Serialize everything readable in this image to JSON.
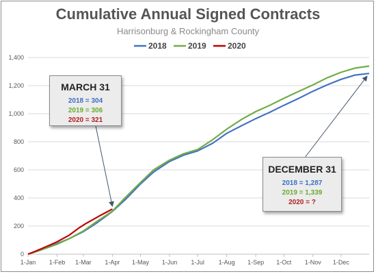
{
  "chart_data": {
    "type": "line",
    "title": "Cumulative Annual Signed Contracts",
    "subtitle": "Harrisonburg & Rockingham County",
    "xlabel": "",
    "ylabel": "",
    "ylim": [
      0,
      1400
    ],
    "y_ticks": [
      "0",
      "200",
      "400",
      "600",
      "800",
      "1,000",
      "1,200",
      "1,400"
    ],
    "x_ticks": [
      "1-Jan",
      "1-Feb",
      "1-Mar",
      "1-Apr",
      "1-May",
      "1-Jun",
      "1-Jul",
      "1-Aug",
      "1-Sep",
      "1-Oct",
      "1-Nov",
      "1-Dec"
    ],
    "x_tick_days": [
      1,
      32,
      60,
      91,
      121,
      152,
      182,
      213,
      244,
      274,
      305,
      335
    ],
    "xlim_days": [
      1,
      365
    ],
    "grid": "horizontal",
    "legend_position": "top",
    "series": [
      {
        "name": "2018",
        "color": "#4472c4",
        "points": [
          [
            1,
            0
          ],
          [
            15,
            30
          ],
          [
            32,
            75
          ],
          [
            45,
            110
          ],
          [
            60,
            160
          ],
          [
            75,
            225
          ],
          [
            91,
            304
          ],
          [
            105,
            390
          ],
          [
            121,
            500
          ],
          [
            135,
            585
          ],
          [
            152,
            660
          ],
          [
            167,
            705
          ],
          [
            182,
            735
          ],
          [
            198,
            790
          ],
          [
            213,
            860
          ],
          [
            229,
            915
          ],
          [
            244,
            965
          ],
          [
            259,
            1010
          ],
          [
            274,
            1060
          ],
          [
            290,
            1110
          ],
          [
            305,
            1160
          ],
          [
            320,
            1205
          ],
          [
            335,
            1245
          ],
          [
            350,
            1275
          ],
          [
            365,
            1287
          ]
        ]
      },
      {
        "name": "2019",
        "color": "#70ad47",
        "points": [
          [
            1,
            0
          ],
          [
            15,
            30
          ],
          [
            32,
            70
          ],
          [
            45,
            110
          ],
          [
            60,
            165
          ],
          [
            75,
            235
          ],
          [
            91,
            306
          ],
          [
            105,
            405
          ],
          [
            121,
            510
          ],
          [
            135,
            600
          ],
          [
            152,
            670
          ],
          [
            167,
            715
          ],
          [
            182,
            745
          ],
          [
            198,
            815
          ],
          [
            213,
            890
          ],
          [
            229,
            960
          ],
          [
            244,
            1015
          ],
          [
            259,
            1060
          ],
          [
            274,
            1110
          ],
          [
            290,
            1160
          ],
          [
            305,
            1205
          ],
          [
            320,
            1255
          ],
          [
            335,
            1295
          ],
          [
            350,
            1325
          ],
          [
            365,
            1339
          ]
        ]
      },
      {
        "name": "2020",
        "color": "#c00000",
        "points": [
          [
            1,
            0
          ],
          [
            8,
            18
          ],
          [
            15,
            38
          ],
          [
            22,
            58
          ],
          [
            32,
            88
          ],
          [
            45,
            135
          ],
          [
            55,
            185
          ],
          [
            62,
            215
          ],
          [
            70,
            245
          ],
          [
            78,
            275
          ],
          [
            85,
            300
          ],
          [
            91,
            321
          ]
        ]
      }
    ],
    "annotations": [
      {
        "heading": "MARCH 31",
        "lines": [
          {
            "text": "2018 = 304",
            "series": "2018"
          },
          {
            "text": "2019 = 306",
            "series": "2019"
          },
          {
            "text": "2020 = 321",
            "series": "2020"
          }
        ],
        "arrow_target": {
          "x": 91,
          "y": 321
        }
      },
      {
        "heading": "DECEMBER 31",
        "lines": [
          {
            "text": "2018 = 1,287",
            "series": "2018"
          },
          {
            "text": "2019 = 1,339",
            "series": "2019"
          },
          {
            "text": "2020 = ?",
            "series": "2020"
          }
        ],
        "arrow_target": {
          "x": 365,
          "y": 1287
        }
      }
    ]
  }
}
